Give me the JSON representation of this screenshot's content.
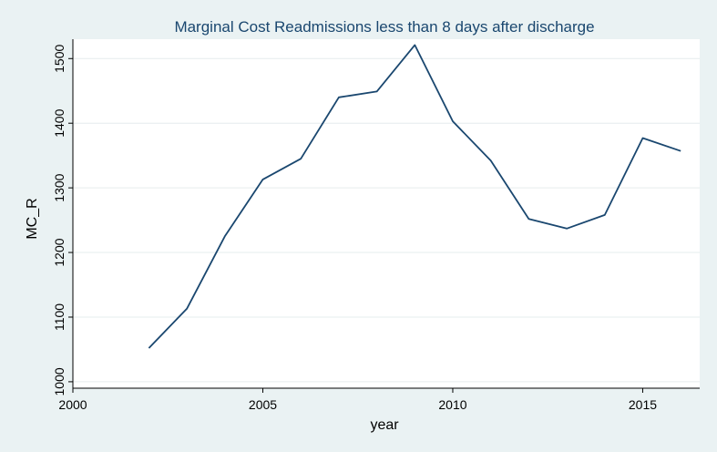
{
  "chart_data": {
    "type": "line",
    "title": "Marginal Cost Readmissions less than 8 days after discharge",
    "xlabel": "year",
    "ylabel": "MC_R",
    "xlim": [
      2000,
      2016.5
    ],
    "ylim": [
      990,
      1530
    ],
    "xticks": [
      2000,
      2005,
      2010,
      2015
    ],
    "yticks": [
      1000,
      1100,
      1200,
      1300,
      1400,
      1500
    ],
    "grid": true,
    "series": [
      {
        "color": "#1a476f",
        "x": [
          2002,
          2003,
          2004,
          2005,
          2006,
          2007,
          2008,
          2009,
          2010,
          2011,
          2012,
          2013,
          2014,
          2015,
          2016
        ],
        "y": [
          1052,
          1113,
          1225,
          1313,
          1345,
          1440,
          1449,
          1521,
          1403,
          1342,
          1252,
          1237,
          1258,
          1377,
          1357
        ]
      }
    ]
  },
  "colors": {
    "background": "#eaf2f3",
    "plot_area": "#ffffff",
    "line": "#1a476f",
    "title": "#1a476f"
  }
}
